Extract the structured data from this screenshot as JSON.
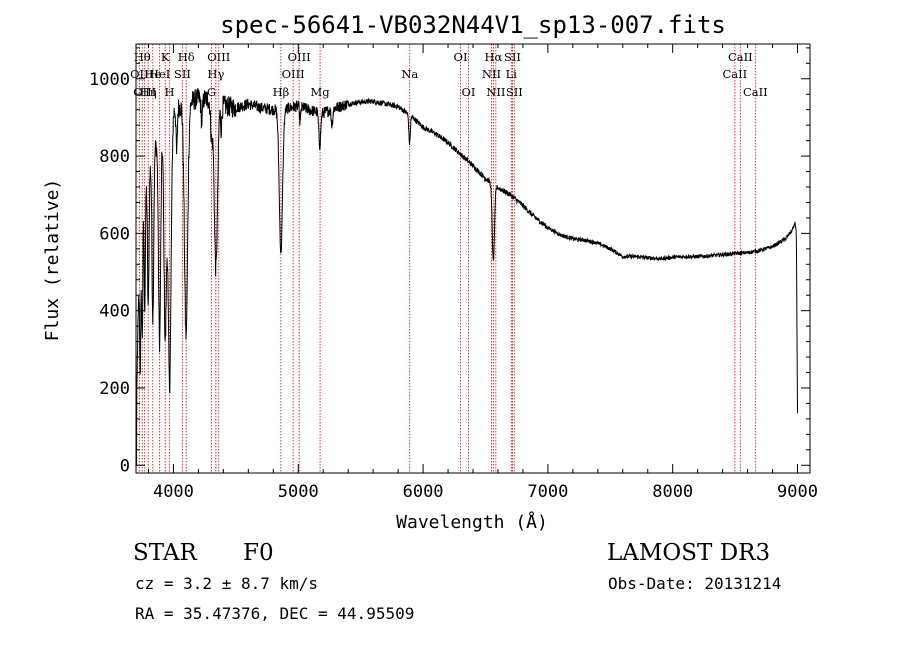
{
  "chart_data": {
    "type": "line",
    "title": "spec-56641-VB032N44V1_sp13-007.fits",
    "xlabel": "Wavelength (Å)",
    "ylabel": "Flux (relative)",
    "xlim": [
      3700,
      9100
    ],
    "ylim": [
      -20,
      1090
    ],
    "xticks": [
      4000,
      5000,
      6000,
      7000,
      8000,
      9000
    ],
    "yticks": [
      0,
      200,
      400,
      600,
      800,
      1000
    ],
    "line_color": "#000000",
    "marker_color": "#cc2222",
    "continuum": [
      [
        3700,
        0
      ],
      [
        3712,
        300
      ],
      [
        3730,
        560
      ],
      [
        3760,
        700
      ],
      [
        3800,
        760
      ],
      [
        3850,
        820
      ],
      [
        3900,
        870
      ],
      [
        3950,
        900
      ],
      [
        4000,
        920
      ],
      [
        4100,
        935
      ],
      [
        4200,
        950
      ],
      [
        4300,
        945
      ],
      [
        4400,
        930
      ],
      [
        4500,
        925
      ],
      [
        4600,
        935
      ],
      [
        4700,
        925
      ],
      [
        4800,
        920
      ],
      [
        4900,
        922
      ],
      [
        5000,
        930
      ],
      [
        5100,
        918
      ],
      [
        5200,
        912
      ],
      [
        5300,
        925
      ],
      [
        5400,
        935
      ],
      [
        5500,
        940
      ],
      [
        5600,
        942
      ],
      [
        5700,
        935
      ],
      [
        5800,
        928
      ],
      [
        5900,
        905
      ],
      [
        6000,
        875
      ],
      [
        6100,
        858
      ],
      [
        6200,
        835
      ],
      [
        6300,
        805
      ],
      [
        6400,
        775
      ],
      [
        6500,
        742
      ],
      [
        6600,
        718
      ],
      [
        6700,
        700
      ],
      [
        6800,
        672
      ],
      [
        6900,
        640
      ],
      [
        7000,
        615
      ],
      [
        7100,
        596
      ],
      [
        7200,
        586
      ],
      [
        7300,
        582
      ],
      [
        7400,
        575
      ],
      [
        7500,
        560
      ],
      [
        7600,
        540
      ],
      [
        7700,
        540
      ],
      [
        7800,
        537
      ],
      [
        7900,
        534
      ],
      [
        8000,
        538
      ],
      [
        8100,
        540
      ],
      [
        8200,
        540
      ],
      [
        8300,
        542
      ],
      [
        8400,
        545
      ],
      [
        8500,
        548
      ],
      [
        8600,
        550
      ],
      [
        8700,
        556
      ],
      [
        8800,
        566
      ],
      [
        8900,
        585
      ],
      [
        8950,
        605
      ],
      [
        8980,
        625
      ],
      [
        8990,
        610
      ],
      [
        8995,
        400
      ],
      [
        9000,
        120
      ]
    ],
    "absorption_lines": [
      {
        "center": 3734,
        "depth": 330,
        "width": 5
      },
      {
        "center": 3750,
        "depth": 320,
        "width": 5
      },
      {
        "center": 3770,
        "depth": 300,
        "width": 5
      },
      {
        "center": 3798,
        "depth": 350,
        "width": 6
      },
      {
        "center": 3835,
        "depth": 420,
        "width": 7
      },
      {
        "center": 3889,
        "depth": 540,
        "width": 9
      },
      {
        "center": 3934,
        "depth": 560,
        "width": 10
      },
      {
        "center": 3969,
        "depth": 700,
        "width": 12
      },
      {
        "center": 4026,
        "depth": 120,
        "width": 5
      },
      {
        "center": 4101,
        "depth": 600,
        "width": 13
      },
      {
        "center": 4227,
        "depth": 60,
        "width": 6
      },
      {
        "center": 4305,
        "depth": 90,
        "width": 8
      },
      {
        "center": 4340,
        "depth": 430,
        "width": 13
      },
      {
        "center": 4383,
        "depth": 60,
        "width": 5
      },
      {
        "center": 4861,
        "depth": 370,
        "width": 13
      },
      {
        "center": 5015,
        "depth": 40,
        "width": 5
      },
      {
        "center": 5172,
        "depth": 85,
        "width": 8
      },
      {
        "center": 5270,
        "depth": 40,
        "width": 6
      },
      {
        "center": 5892,
        "depth": 75,
        "width": 6
      },
      {
        "center": 6563,
        "depth": 200,
        "width": 9
      }
    ],
    "markers": [
      {
        "wavelength": 3727,
        "label": "OII",
        "row": 1
      },
      {
        "wavelength": 3750,
        "label": "Hθ",
        "row": 0
      },
      {
        "wavelength": 3770,
        "label": "OIII",
        "row": 2
      },
      {
        "wavelength": 3798,
        "label": "Hη",
        "row": 2
      },
      {
        "wavelength": 3835,
        "label": "He",
        "row": 1
      },
      {
        "wavelength": 3889,
        "label": "HeI",
        "row": 1
      },
      {
        "wavelength": 3934,
        "label": "K",
        "row": 0
      },
      {
        "wavelength": 3969,
        "label": "H",
        "row": 2
      },
      {
        "wavelength": 4072,
        "label": "SII",
        "row": 1
      },
      {
        "wavelength": 4102,
        "label": "Hδ",
        "row": 0
      },
      {
        "wavelength": 4305,
        "label": "G",
        "row": 2
      },
      {
        "wavelength": 4340,
        "label": "Hγ",
        "row": 1
      },
      {
        "wavelength": 4363,
        "label": "OIII",
        "row": 0
      },
      {
        "wavelength": 4861,
        "label": "Hβ",
        "row": 2
      },
      {
        "wavelength": 4959,
        "label": "OIII",
        "row": 1
      },
      {
        "wavelength": 5007,
        "label": "OIII",
        "row": 0
      },
      {
        "wavelength": 5175,
        "label": "Mg",
        "row": 2
      },
      {
        "wavelength": 5893,
        "label": "Na",
        "row": 1
      },
      {
        "wavelength": 6300,
        "label": "OI",
        "row": 0
      },
      {
        "wavelength": 6364,
        "label": "OI",
        "row": 2
      },
      {
        "wavelength": 6548,
        "label": "NII",
        "row": 1
      },
      {
        "wavelength": 6563,
        "label": "Hα",
        "row": 0
      },
      {
        "wavelength": 6583,
        "label": "NII",
        "row": 2
      },
      {
        "wavelength": 6707,
        "label": "Li",
        "row": 1
      },
      {
        "wavelength": 6716,
        "label": "SII",
        "row": 0
      },
      {
        "wavelength": 6731,
        "label": "SII",
        "row": 2
      },
      {
        "wavelength": 8498,
        "label": "CaII",
        "row": 1
      },
      {
        "wavelength": 8542,
        "label": "CaII",
        "row": 0
      },
      {
        "wavelength": 8662,
        "label": "CaII",
        "row": 2
      }
    ]
  },
  "info": {
    "object_class": "STAR",
    "subclass": "F0",
    "cz": "cz = 3.2 ± 8.7 km/s",
    "radec": "RA =  35.47376, DEC =  44.95509",
    "survey": "LAMOST DR3",
    "obs_date": "Obs-Date: 20131214"
  }
}
